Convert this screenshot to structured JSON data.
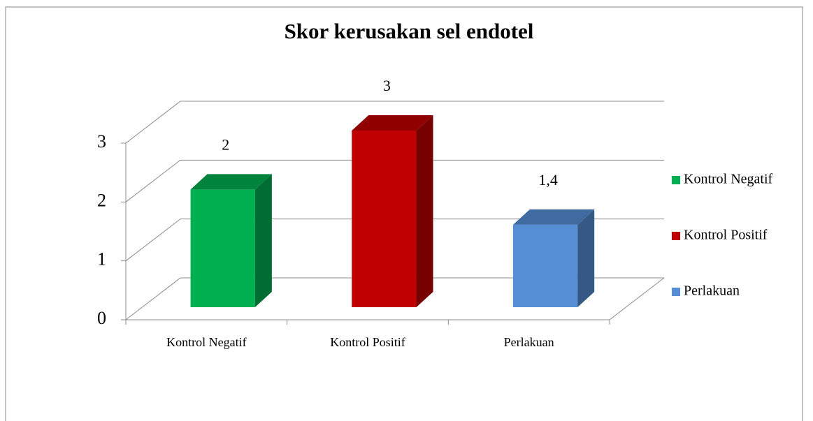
{
  "chart_data": {
    "type": "bar3d",
    "title": "Skor kerusakan sel endotel",
    "categories": [
      "Kontrol Negatif",
      "Kontrol Positif",
      "Perlakuan"
    ],
    "values": [
      2,
      3,
      1.4
    ],
    "value_labels": [
      "2",
      "3",
      "1,4"
    ],
    "colors": [
      "#00b050",
      "#c00000",
      "#558ed5"
    ],
    "ylim": [
      0,
      3
    ],
    "yticks": [
      0,
      1,
      2,
      3
    ],
    "grid": true,
    "legend": "right"
  }
}
